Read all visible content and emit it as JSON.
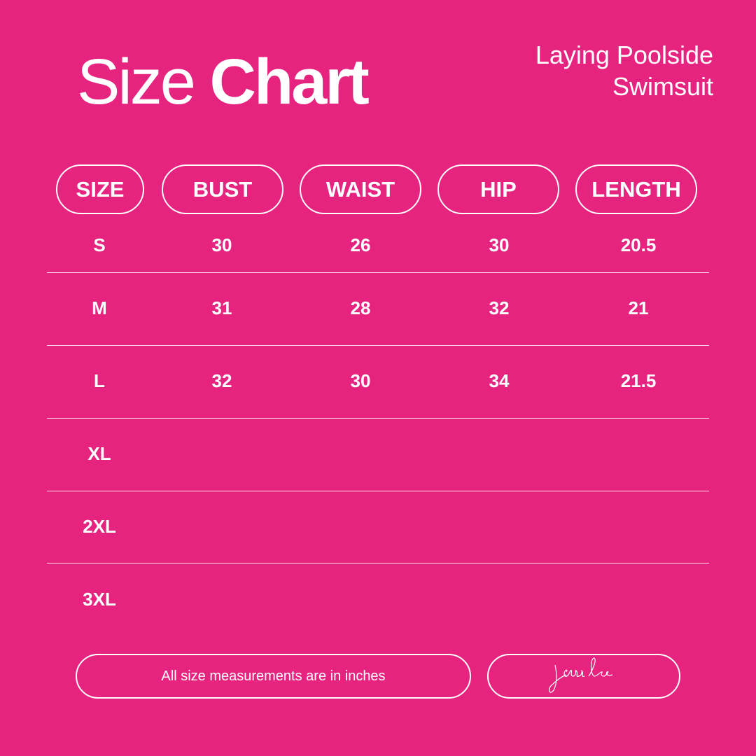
{
  "title": {
    "light": "Size",
    "bold": "Chart"
  },
  "subtitle": {
    "line1": "Laying Poolside",
    "line2": "Swimsuit"
  },
  "headers": [
    "SIZE",
    "BUST",
    "WAIST",
    "HIP",
    "LENGTH"
  ],
  "rows": [
    [
      "S",
      "30",
      "26",
      "30",
      "20.5"
    ],
    [
      "M",
      "31",
      "28",
      "32",
      "21"
    ],
    [
      "L",
      "32",
      "30",
      "34",
      "21.5"
    ],
    [
      "XL",
      "",
      "",
      "",
      ""
    ],
    [
      "2XL",
      "",
      "",
      "",
      ""
    ],
    [
      "3XL",
      "",
      "",
      "",
      ""
    ]
  ],
  "footer": {
    "note": "All size measurements are in inches",
    "signature": "jess lea"
  },
  "colors": {
    "background": "#e6247f",
    "foreground": "#ffffff"
  }
}
